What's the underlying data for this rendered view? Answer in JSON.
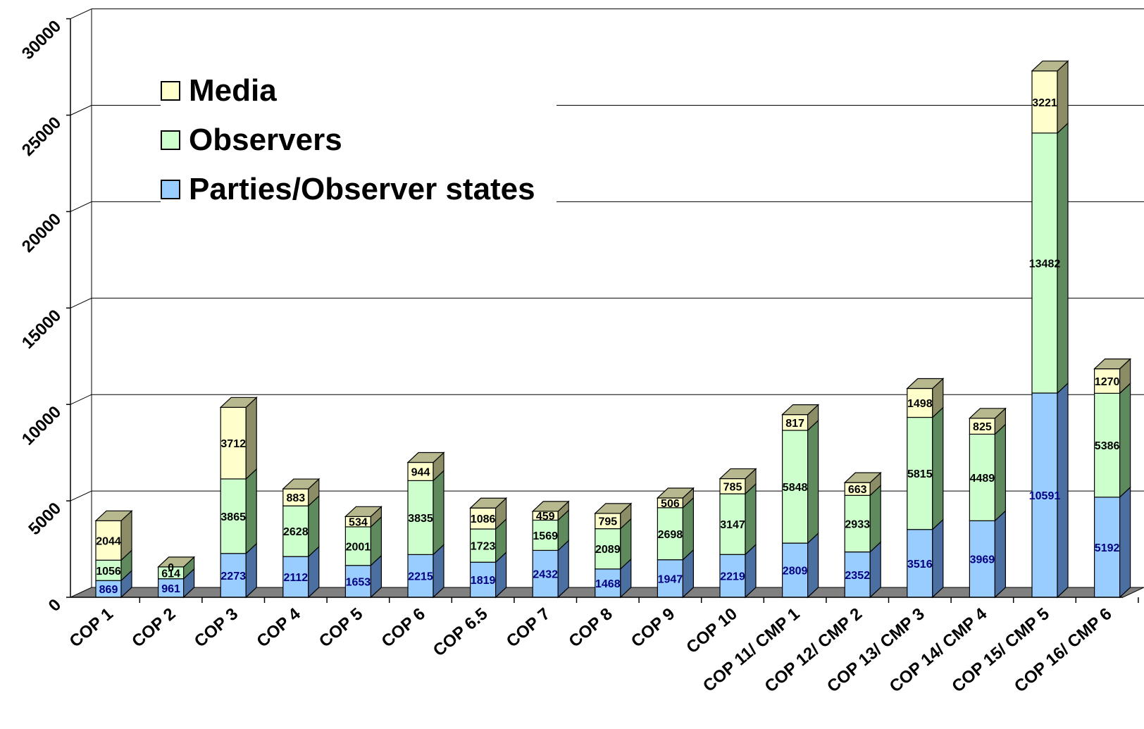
{
  "chart_data": {
    "type": "bar",
    "stacked": true,
    "three_d": true,
    "categories": [
      "COP 1",
      "COP 2",
      "COP 3",
      "COP 4",
      "COP 5",
      "COP 6",
      "COP 6.5",
      "COP 7",
      "COP 8",
      "COP 9",
      "COP 10",
      "COP 11/ CMP 1",
      "COP 12/ CMP 2",
      "COP 13/ CMP 3",
      "COP 14/ CMP 4",
      "COP 15/ CMP 5",
      "COP 16/ CMP 6"
    ],
    "series": [
      {
        "name": "Parties/Observer states",
        "color": "#99CCFF",
        "side": "#4A6FA0",
        "top": "#6F91BF",
        "label_color": "#000080",
        "values": [
          869,
          961,
          2273,
          2112,
          1653,
          2215,
          1819,
          2432,
          1468,
          1947,
          2219,
          2809,
          2352,
          3516,
          3969,
          10591,
          5192
        ]
      },
      {
        "name": "Observers",
        "color": "#CCFFCC",
        "side": "#5E8A5E",
        "top": "#8FB88F",
        "label_color": "#000000",
        "values": [
          1056,
          614,
          3865,
          2628,
          2001,
          3835,
          1723,
          1569,
          2089,
          2698,
          3147,
          5848,
          2933,
          5815,
          4489,
          13482,
          5386
        ]
      },
      {
        "name": "Media",
        "color": "#FFFFCC",
        "side": "#8C8C66",
        "top": "#B8B88F",
        "label_color": "#000000",
        "values": [
          2044,
          0,
          3712,
          883,
          534,
          944,
          1086,
          459,
          795,
          506,
          785,
          817,
          663,
          1498,
          825,
          3221,
          1270
        ]
      }
    ],
    "y_axis": {
      "min": 0,
      "max": 30000,
      "step": 5000,
      "tick_labels": [
        "0",
        "5000",
        "10000",
        "15000",
        "20000",
        "25000",
        "30000"
      ]
    },
    "grid": true,
    "legend_position": "top-left",
    "legend_order": [
      "Media",
      "Observers",
      "Parties/Observer states"
    ],
    "title": "",
    "xlabel": "",
    "ylabel": ""
  }
}
